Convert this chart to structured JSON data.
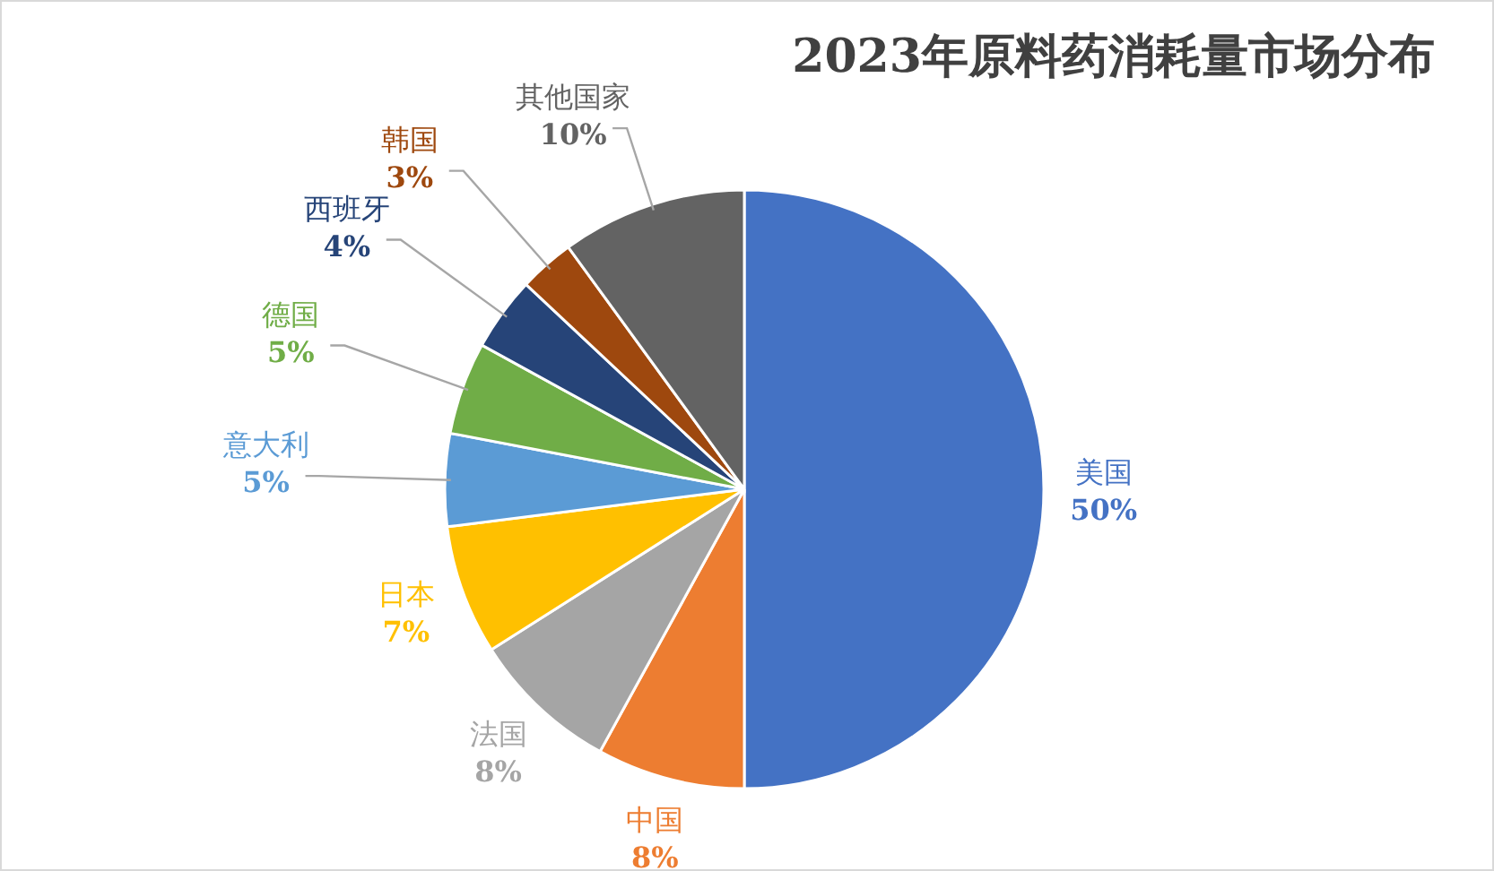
{
  "chart_data": {
    "type": "pie",
    "title": "2023年原料药消耗量市场分布",
    "categories": [
      "美国",
      "中国",
      "法国",
      "日本",
      "意大利",
      "德国",
      "西班牙",
      "韩国",
      "其他国家"
    ],
    "values": [
      50,
      8,
      8,
      7,
      5,
      5,
      4,
      3,
      10
    ],
    "colors": [
      "#4472c4",
      "#ed7d31",
      "#a5a5a5",
      "#ffc000",
      "#5b9bd5",
      "#70ad47",
      "#264478",
      "#9e480e",
      "#636363"
    ],
    "value_labels": [
      "50%",
      "8%",
      "8%",
      "7%",
      "5%",
      "5%",
      "4%",
      "3%",
      "10%"
    ]
  }
}
